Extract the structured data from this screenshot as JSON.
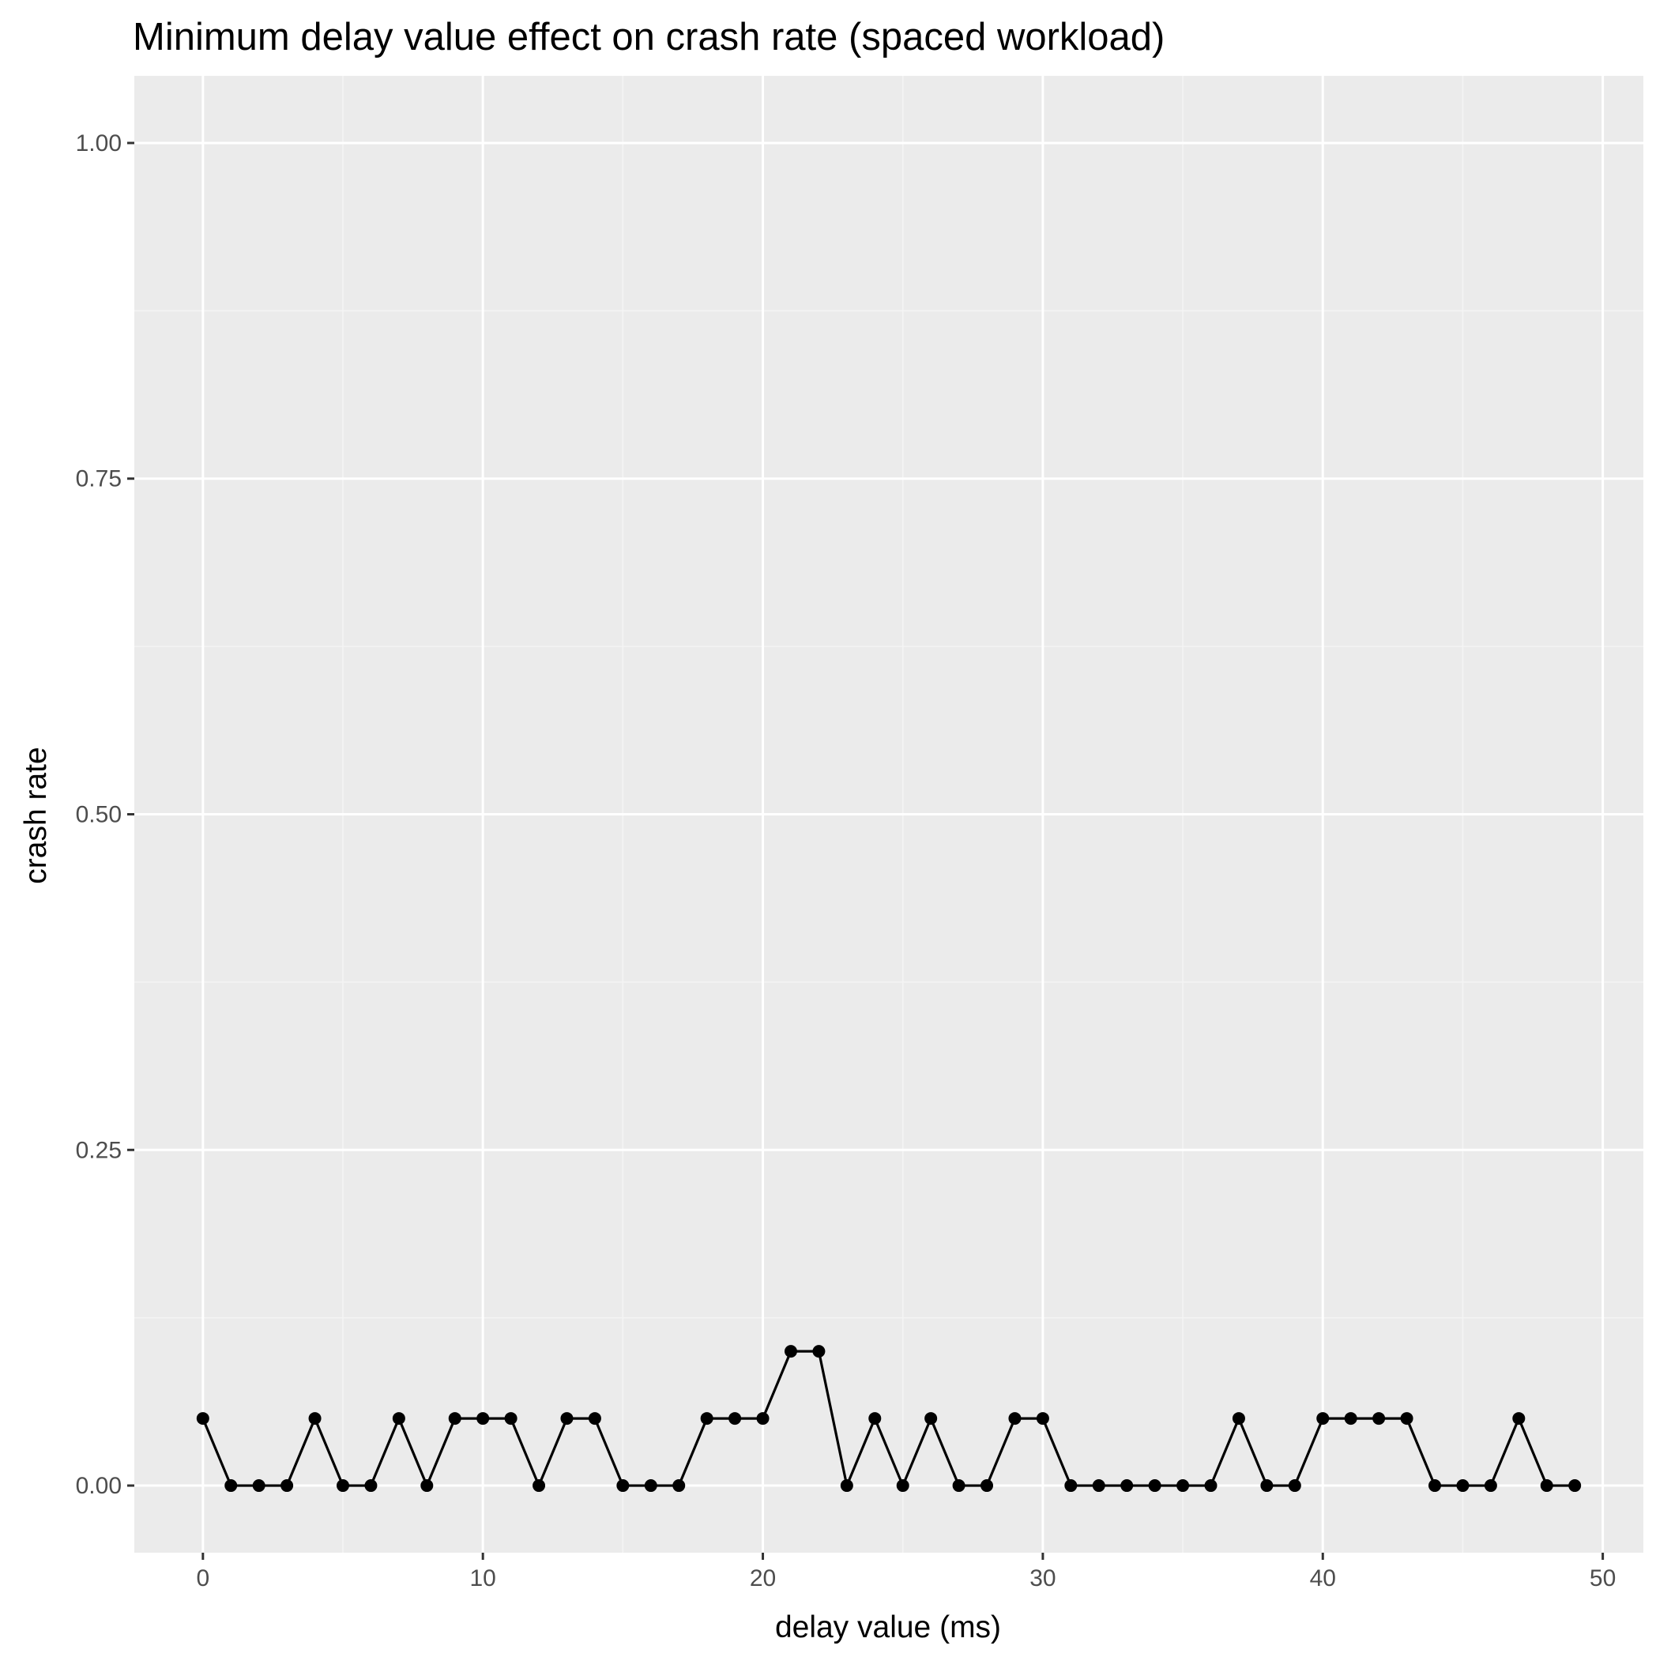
{
  "chart_data": {
    "type": "line",
    "title": "Minimum delay value effect on crash rate (spaced workload)",
    "xlabel": "delay value (ms)",
    "ylabel": "crash rate",
    "xlim": [
      -2.45,
      51.45
    ],
    "ylim": [
      -0.05,
      1.05
    ],
    "x_ticks": [
      0,
      10,
      20,
      30,
      40,
      50
    ],
    "x_tick_labels": [
      "0",
      "10",
      "20",
      "30",
      "40",
      "50"
    ],
    "y_ticks": [
      0.0,
      0.25,
      0.5,
      0.75,
      1.0
    ],
    "y_tick_labels": [
      "0.00",
      "0.25",
      "0.50",
      "0.75",
      "1.00"
    ],
    "grid": true,
    "legend": "none",
    "series": [
      {
        "name": "crash rate",
        "color": "#000000",
        "x": [
          0,
          1,
          2,
          3,
          4,
          5,
          6,
          7,
          8,
          9,
          10,
          11,
          12,
          13,
          14,
          15,
          16,
          17,
          18,
          19,
          20,
          21,
          22,
          23,
          24,
          25,
          26,
          27,
          28,
          29,
          30,
          31,
          32,
          33,
          34,
          35,
          36,
          37,
          38,
          39,
          40,
          41,
          42,
          43,
          44,
          45,
          46,
          47,
          48,
          49
        ],
        "values": [
          0.05,
          0,
          0,
          0,
          0.05,
          0,
          0,
          0.05,
          0,
          0.05,
          0.05,
          0.05,
          0,
          0.05,
          0.05,
          0,
          0,
          0,
          0.05,
          0.05,
          0.05,
          0.1,
          0.1,
          0,
          0.05,
          0,
          0.05,
          0,
          0,
          0.05,
          0.05,
          0,
          0,
          0,
          0,
          0,
          0,
          0.05,
          0,
          0,
          0.05,
          0.05,
          0.05,
          0.05,
          0,
          0,
          0,
          0.05,
          0,
          0
        ]
      }
    ]
  },
  "colors": {
    "panel_background": "#ebebeb",
    "grid_major": "#ffffff",
    "grid_minor": "#f4f4f4",
    "line": "#000000",
    "tick_label": "#4d4d4d",
    "tick_mark": "#333333"
  }
}
